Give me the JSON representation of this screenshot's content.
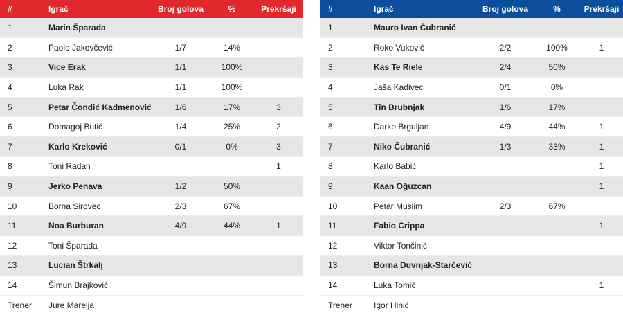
{
  "headers": {
    "num": "#",
    "player": "Igrač",
    "goals": "Broj golova",
    "pct": "%",
    "fouls": "Prekršaji"
  },
  "colors": {
    "left_team": "#e1282c",
    "right_team": "#0a4e9c",
    "row_alt": "#e6e6e6"
  },
  "left_team": {
    "players": [
      {
        "num": "1",
        "name": "Marin Šparada",
        "goals": "",
        "pct": "",
        "fouls": ""
      },
      {
        "num": "2",
        "name": "Paolo Jakovčević",
        "goals": "1/7",
        "pct": "14%",
        "fouls": ""
      },
      {
        "num": "3",
        "name": "Vice Erak",
        "goals": "1/1",
        "pct": "100%",
        "fouls": ""
      },
      {
        "num": "4",
        "name": "Luka Rak",
        "goals": "1/1",
        "pct": "100%",
        "fouls": ""
      },
      {
        "num": "5",
        "name": "Petar Čondić Kadmenović",
        "goals": "1/6",
        "pct": "17%",
        "fouls": "3"
      },
      {
        "num": "6",
        "name": "Domagoj Butić",
        "goals": "1/4",
        "pct": "25%",
        "fouls": "2"
      },
      {
        "num": "7",
        "name": "Karlo Kreković",
        "goals": "0/1",
        "pct": "0%",
        "fouls": "3"
      },
      {
        "num": "8",
        "name": "Toni Radan",
        "goals": "",
        "pct": "",
        "fouls": "1"
      },
      {
        "num": "9",
        "name": "Jerko Penava",
        "goals": "1/2",
        "pct": "50%",
        "fouls": ""
      },
      {
        "num": "10",
        "name": "Borna Sirovec",
        "goals": "2/3",
        "pct": "67%",
        "fouls": ""
      },
      {
        "num": "11",
        "name": "Noa Burburan",
        "goals": "4/9",
        "pct": "44%",
        "fouls": "1"
      },
      {
        "num": "12",
        "name": "Toni Šparada",
        "goals": "",
        "pct": "",
        "fouls": ""
      },
      {
        "num": "13",
        "name": "Lucian Štrkalj",
        "goals": "",
        "pct": "",
        "fouls": ""
      },
      {
        "num": "14",
        "name": "Šimun Brajković",
        "goals": "",
        "pct": "",
        "fouls": ""
      }
    ],
    "coach_label": "Trener",
    "coach_name": "Jure Marelja"
  },
  "right_team": {
    "players": [
      {
        "num": "1",
        "name": "Mauro Ivan Čubranić",
        "goals": "",
        "pct": "",
        "fouls": ""
      },
      {
        "num": "2",
        "name": "Roko Vuković",
        "goals": "2/2",
        "pct": "100%",
        "fouls": "1"
      },
      {
        "num": "3",
        "name": "Kas Te Riele",
        "goals": "2/4",
        "pct": "50%",
        "fouls": ""
      },
      {
        "num": "4",
        "name": "Jaša Kadivec",
        "goals": "0/1",
        "pct": "0%",
        "fouls": ""
      },
      {
        "num": "5",
        "name": "Tin Brubnjak",
        "goals": "1/6",
        "pct": "17%",
        "fouls": ""
      },
      {
        "num": "6",
        "name": "Darko Brguljan",
        "goals": "4/9",
        "pct": "44%",
        "fouls": "1"
      },
      {
        "num": "7",
        "name": "Niko Čubranić",
        "goals": "1/3",
        "pct": "33%",
        "fouls": "1"
      },
      {
        "num": "8",
        "name": "Karlo Babić",
        "goals": "",
        "pct": "",
        "fouls": "1"
      },
      {
        "num": "9",
        "name": "Kaan Oğuzcan",
        "goals": "",
        "pct": "",
        "fouls": "1"
      },
      {
        "num": "10",
        "name": "Petar Muslim",
        "goals": "2/3",
        "pct": "67%",
        "fouls": ""
      },
      {
        "num": "11",
        "name": "Fabio Crippa",
        "goals": "",
        "pct": "",
        "fouls": "1"
      },
      {
        "num": "12",
        "name": "Viktor Tončinić",
        "goals": "",
        "pct": "",
        "fouls": ""
      },
      {
        "num": "13",
        "name": "Borna Duvnjak-Starčević",
        "goals": "",
        "pct": "",
        "fouls": ""
      },
      {
        "num": "14",
        "name": "Luka Tomić",
        "goals": "",
        "pct": "",
        "fouls": "1"
      }
    ],
    "coach_label": "Trener",
    "coach_name": "Igor Hinić"
  }
}
